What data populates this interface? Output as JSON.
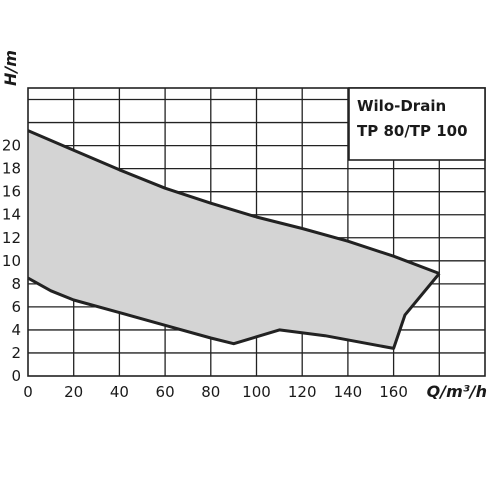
{
  "chart_data": {
    "type": "area",
    "title": "Wilo-Drain",
    "subtitle": "TP 80/TP 100",
    "xlabel": "Q/m³/h",
    "ylabel": "H/m",
    "xlim": [
      0,
      200
    ],
    "ylim": [
      0,
      25
    ],
    "x_ticks": [
      0,
      20,
      40,
      60,
      80,
      100,
      120,
      140,
      160
    ],
    "y_ticks": [
      0,
      2,
      4,
      6,
      8,
      10,
      12,
      14,
      16,
      18,
      20
    ],
    "grid": true,
    "fill_color": "#d4d4d4",
    "line_color": "#222222",
    "series": [
      {
        "values": [
          [
            0,
            21.3
          ],
          [
            20,
            19.6
          ],
          [
            40,
            17.9
          ],
          [
            60,
            16.3
          ],
          [
            80,
            15.0
          ],
          [
            100,
            13.8
          ],
          [
            120,
            12.8
          ],
          [
            140,
            11.7
          ],
          [
            160,
            10.4
          ],
          [
            180,
            8.9
          ]
        ]
      },
      {
        "values": [
          [
            0,
            8.5
          ],
          [
            10,
            7.4
          ],
          [
            20,
            6.6
          ],
          [
            40,
            5.5
          ],
          [
            60,
            4.4
          ],
          [
            80,
            3.3
          ],
          [
            90,
            2.8
          ],
          [
            110,
            4.0
          ],
          [
            130,
            3.5
          ],
          [
            160,
            2.4
          ],
          [
            165,
            5.3
          ],
          [
            180,
            8.9
          ]
        ]
      }
    ]
  }
}
